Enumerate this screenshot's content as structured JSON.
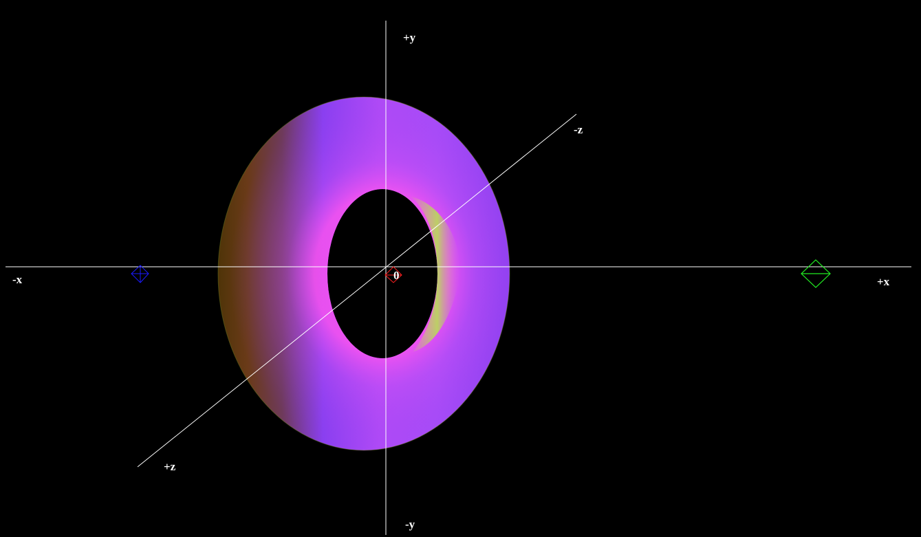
{
  "scene": {
    "background_color": "#000000",
    "axes": {
      "color": "#ffffff",
      "labels": {
        "pos_y": "+y",
        "neg_y": "-y",
        "pos_x": "+x",
        "neg_x": "-x",
        "pos_z": "+z",
        "neg_z": "-z",
        "origin": "0"
      }
    },
    "torus": {
      "colors": {
        "shadow": "#5a3a10",
        "mid": "#8a3ff0",
        "highlight": "#ee55f5",
        "inner_rim": "#b8dd55"
      }
    },
    "markers": [
      {
        "name": "blue-light-marker",
        "color": "#1a1aff",
        "shape": "diamond"
      },
      {
        "name": "origin-marker",
        "color": "#ff2020",
        "shape": "diamond"
      },
      {
        "name": "green-light-marker",
        "color": "#22ee22",
        "shape": "diamond"
      }
    ]
  }
}
